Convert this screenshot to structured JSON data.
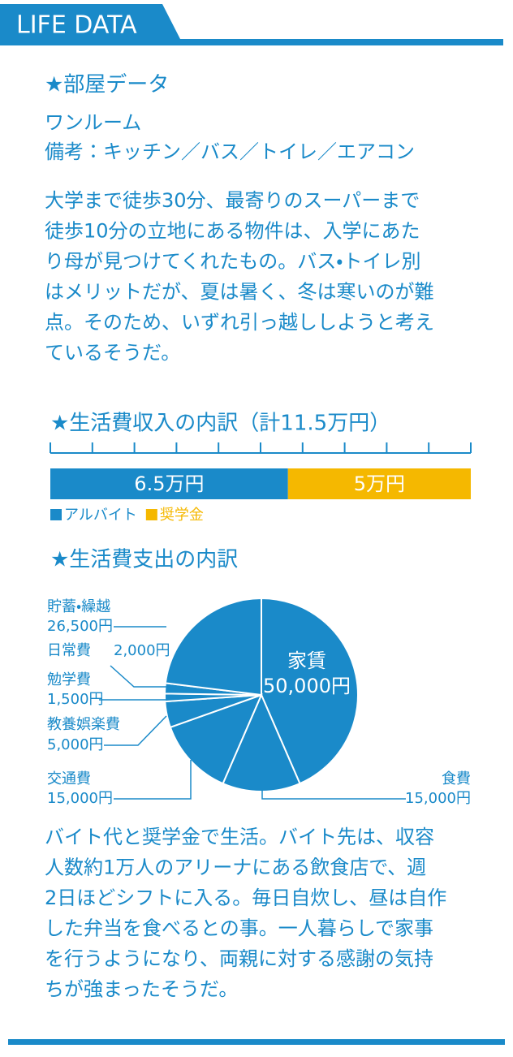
{
  "header": {
    "title": "LIFE DATA"
  },
  "room": {
    "title": "★部屋データ",
    "type": "ワンルーム",
    "note": "備考：キッチン／バス／トイレ／エアコン"
  },
  "paragraph1": [
    "大学まで徒歩30分、最寄りのスーパーまで",
    "徒歩10分の立地にある物件は、入学にあた",
    "り母が見つけてくれたもの。バス・トイレ別",
    "はメリットだが、夏は暑く、冬は寒いのが難",
    "点。そのため、いずれ引っ越ししようと考え",
    "ているそうだ。"
  ],
  "chart_data": [
    {
      "type": "bar",
      "orientation": "horizontal",
      "stacked": true,
      "title": "★生活費収入の内訳（計11.5万円）",
      "xlim": [
        0,
        11.5
      ],
      "series": [
        {
          "name": "アルバイト",
          "color": "#1a8ac9",
          "values": [
            6.5
          ],
          "value_labels": [
            "6.5万円"
          ]
        },
        {
          "name": "奨学金",
          "color": "#f5b800",
          "values": [
            5
          ],
          "value_labels": [
            "5万円"
          ]
        }
      ]
    },
    {
      "type": "pie",
      "title": "★生活費支出の内訳",
      "color": "#1a8ac9",
      "categories": [
        "家賃",
        "食費",
        "交通費",
        "教養娯楽費",
        "勉学費",
        "日常費",
        "貯蓄・繰越"
      ],
      "values": [
        50000,
        15000,
        15000,
        5000,
        1500,
        2000,
        26500
      ],
      "value_labels": [
        "50,000円",
        "15,000円",
        "15,000円",
        "5,000円",
        "1,500円",
        "2,000円",
        "26,500円"
      ]
    }
  ],
  "paragraph2": [
    "バイト代と奨学金で生活。バイト先は、収容",
    "人数約1万人のアリーナにある飲食店で、週",
    "2日ほどシフトに入る。毎日自炊し、昼は自作",
    "した弁当を食べるとの事。一人暮らしで家事",
    "を行うようになり、両親に対する感謝の気持",
    "ちが強まったそうだ。"
  ]
}
